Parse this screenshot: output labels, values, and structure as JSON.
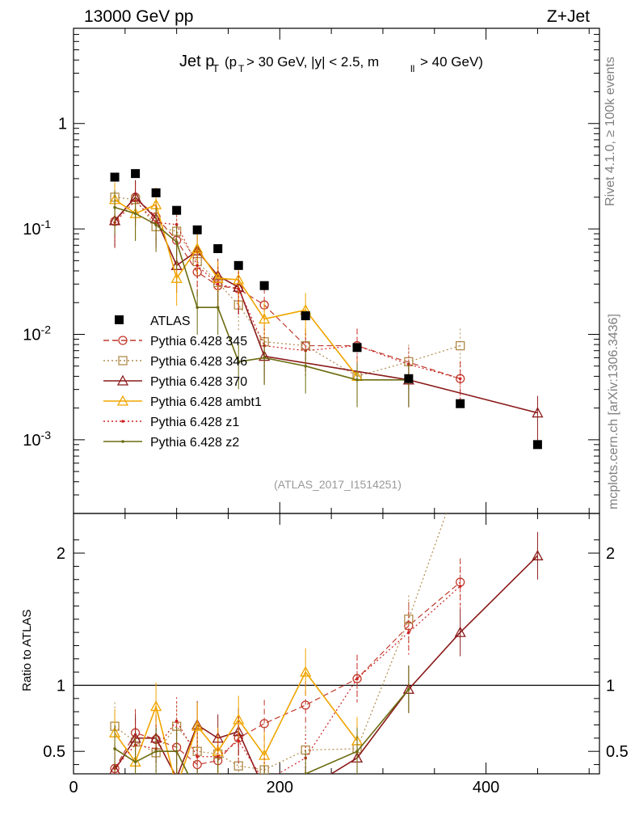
{
  "header": {
    "energy": "13000 GeV pp",
    "process": "Z+Jet",
    "title_main": "Jet p",
    "title_sub": "T",
    "title_cond_a": "(p",
    "title_cond_b": "T",
    "title_cond_c": "> 30 GeV, |y| < 2.5, m",
    "title_cond_d": "ll",
    "title_cond_e": "> 40 GeV)",
    "analysis_id": "(ATLAS_2017_I1514251)",
    "rivet_note": "Rivet 4.1.0, ≥ 100k events",
    "source_note": "mcplots.cern.ch [arXiv:1306.3436]"
  },
  "chart_data": {
    "type": "line",
    "xlabel": "",
    "ylabel_ratio": "Ratio to ATLAS",
    "xlim": [
      0,
      510
    ],
    "ylim_main": [
      0.0002,
      8
    ],
    "ylim_ratio": [
      0.33,
      2.3
    ],
    "x_ticks": [
      "0",
      "200",
      "400"
    ],
    "y_ticks_main": [
      "10^-3",
      "10^-2",
      "10^-1",
      "1"
    ],
    "y_ticks_ratio": [
      "0.5",
      "1",
      "2"
    ],
    "x": [
      40,
      60,
      80,
      100,
      120,
      140,
      160,
      185,
      225,
      275,
      325,
      375,
      450
    ],
    "atlas": [
      0.31,
      0.335,
      0.22,
      0.15,
      0.098,
      0.065,
      0.045,
      0.029,
      0.015,
      0.0075,
      0.0038,
      0.0022,
      0.0009
    ],
    "series": [
      {
        "name": "Pythia 6.428 345",
        "color": "#c0392b",
        "style": "dashed",
        "marker": "circle",
        "values": [
          0.118,
          0.2,
          0.13,
          0.078,
          0.039,
          0.029,
          0.027,
          0.019,
          0.0078,
          0.0078,
          null,
          0.0038,
          null
        ],
        "ratio": [
          0.37,
          0.64,
          0.59,
          0.53,
          0.4,
          0.43,
          0.6,
          0.71,
          0.85,
          1.05,
          1.45,
          1.78,
          null
        ]
      },
      {
        "name": "Pythia 6.428 346",
        "color": "#b08a4a",
        "style": "dotted",
        "marker": "square",
        "values": [
          0.2,
          0.19,
          0.105,
          0.095,
          0.049,
          0.031,
          0.019,
          0.0085,
          0.0078,
          0.004,
          0.0055,
          0.0078,
          null
        ],
        "ratio": [
          0.69,
          0.57,
          0.49,
          0.69,
          0.5,
          0.48,
          0.39,
          0.36,
          0.51,
          0.52,
          1.5,
          2.6,
          null
        ]
      },
      {
        "name": "Pythia 6.428 370",
        "color": "#8b1a1a",
        "style": "solid",
        "marker": "triangle",
        "values": [
          0.12,
          0.2,
          0.125,
          0.045,
          0.062,
          0.036,
          0.028,
          0.0062,
          null,
          null,
          0.0037,
          null,
          0.0018
        ],
        "ratio": [
          0.36,
          0.6,
          0.6,
          0.3,
          0.7,
          0.6,
          0.65,
          0.21,
          0.21,
          0.45,
          0.97,
          1.4,
          1.98
        ]
      },
      {
        "name": "Pythia 6.428 ambt1",
        "color": "#f0a500",
        "style": "solid",
        "marker": "triangle",
        "values": [
          0.19,
          0.14,
          0.17,
          0.034,
          0.065,
          0.034,
          0.033,
          0.014,
          0.017,
          0.004,
          null,
          null,
          null
        ],
        "ratio": [
          0.64,
          0.42,
          0.84,
          0.23,
          0.69,
          0.5,
          0.74,
          0.47,
          1.1,
          0.58,
          null,
          null,
          null
        ]
      },
      {
        "name": "Pythia 6.428 z1",
        "color": "#cc2020",
        "style": "dotted",
        "marker": "dot",
        "values": [
          0.115,
          0.185,
          0.115,
          0.11,
          0.045,
          0.03,
          0.027,
          0.0078,
          0.007,
          0.0078,
          0.0052,
          0.0038,
          null
        ],
        "ratio": [
          0.37,
          0.55,
          0.52,
          0.73,
          0.46,
          0.46,
          0.58,
          0.27,
          0.45,
          1.05,
          1.4,
          1.75,
          null
        ]
      },
      {
        "name": "Pythia 6.428 z2",
        "color": "#6b6b10",
        "style": "solid",
        "marker": "dot",
        "values": [
          0.16,
          0.14,
          0.11,
          0.075,
          0.018,
          0.018,
          0.0055,
          0.006,
          0.005,
          0.0037,
          0.0037,
          null,
          null
        ],
        "ratio": [
          0.52,
          0.42,
          0.5,
          0.5,
          0.19,
          0.28,
          0.12,
          0.21,
          0.33,
          0.5,
          0.97,
          null,
          null
        ]
      }
    ],
    "legend_atlas": "ATLAS",
    "legend_position": "lower-left of main panel"
  }
}
